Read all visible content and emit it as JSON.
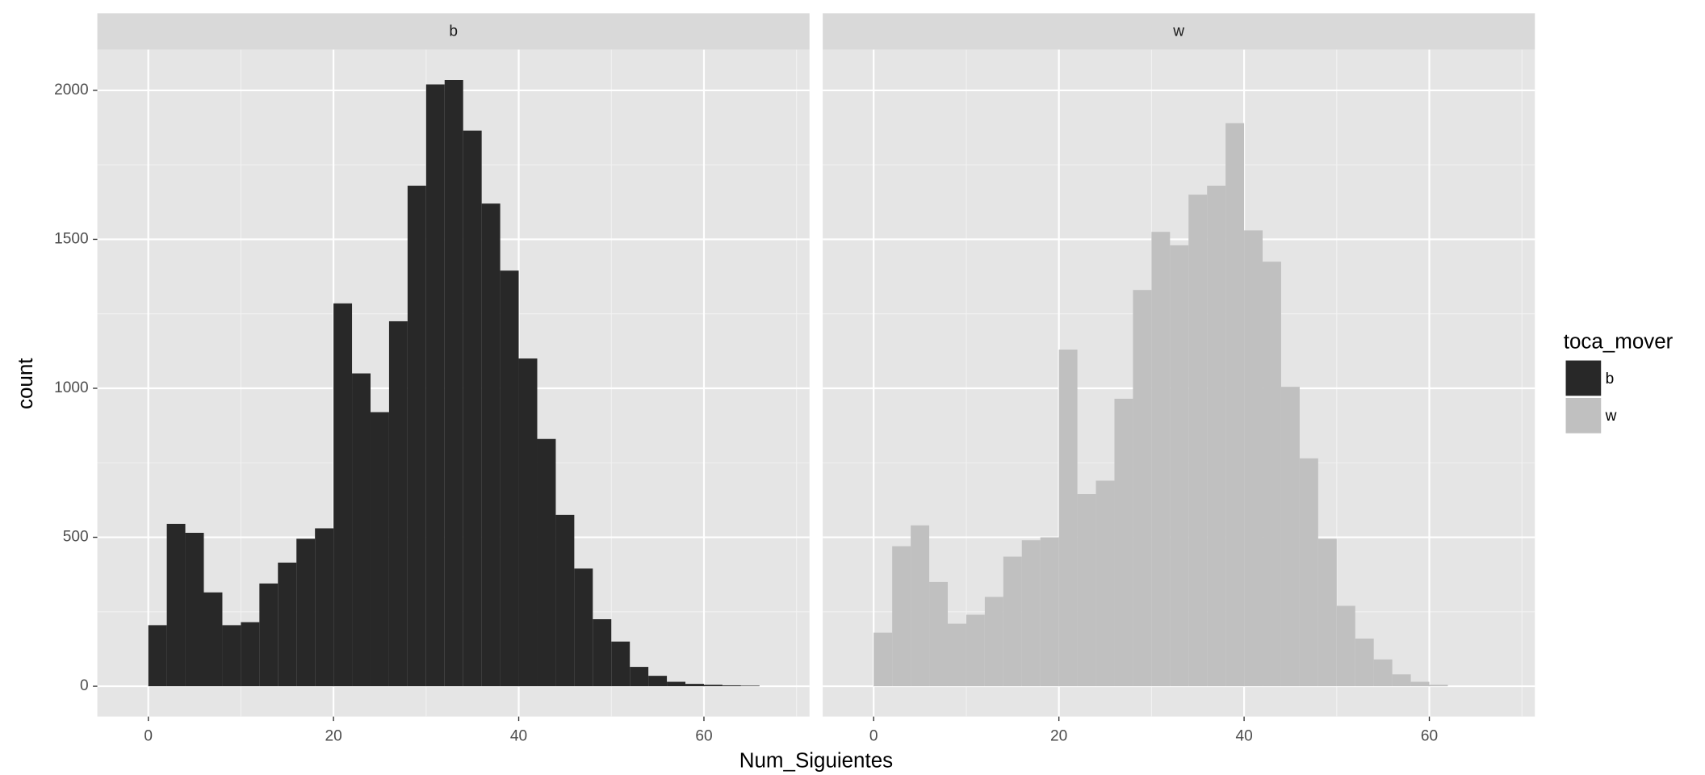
{
  "chart_data": {
    "type": "histogram",
    "x_label": "Num_Siguientes",
    "y_label": "count",
    "legend_title": "toca_mover",
    "xlim": [
      -5.5,
      71.4
    ],
    "xticks": [
      0,
      20,
      40,
      60
    ],
    "xminor": [
      10,
      30,
      50,
      70
    ],
    "ylim": [
      -101.75,
      2136.75
    ],
    "yticks": [
      0,
      500,
      1000,
      1500,
      2000
    ],
    "yminor": [
      250,
      750,
      1250,
      1750
    ],
    "grid": true,
    "series": [
      {
        "name": "b",
        "color": "#282828",
        "bins": [
          0,
          2,
          4,
          6,
          8,
          10,
          12,
          14,
          16,
          18,
          20,
          22,
          24,
          26,
          28,
          30,
          32,
          34,
          36,
          38,
          40,
          42,
          44,
          46,
          48,
          50,
          52,
          54,
          56,
          58,
          60,
          62,
          64,
          66
        ],
        "values": [
          205,
          545,
          515,
          315,
          205,
          215,
          345,
          415,
          495,
          530,
          1285,
          1050,
          920,
          1225,
          1680,
          2020,
          2035,
          1865,
          1620,
          1395,
          1100,
          830,
          575,
          395,
          225,
          150,
          65,
          35,
          15,
          8,
          5,
          3,
          2
        ]
      },
      {
        "name": "w",
        "color": "#c0c0c0",
        "bins": [
          0,
          2,
          4,
          6,
          8,
          10,
          12,
          14,
          16,
          18,
          20,
          22,
          24,
          26,
          28,
          30,
          32,
          34,
          36,
          38,
          40,
          42,
          44,
          46,
          48,
          50,
          52,
          54,
          56,
          58,
          60,
          62
        ],
        "values": [
          180,
          470,
          540,
          350,
          210,
          240,
          300,
          435,
          490,
          500,
          1130,
          645,
          690,
          965,
          1330,
          1525,
          1480,
          1650,
          1680,
          1890,
          1530,
          1425,
          1005,
          765,
          495,
          270,
          160,
          90,
          40,
          15,
          5
        ]
      }
    ]
  }
}
